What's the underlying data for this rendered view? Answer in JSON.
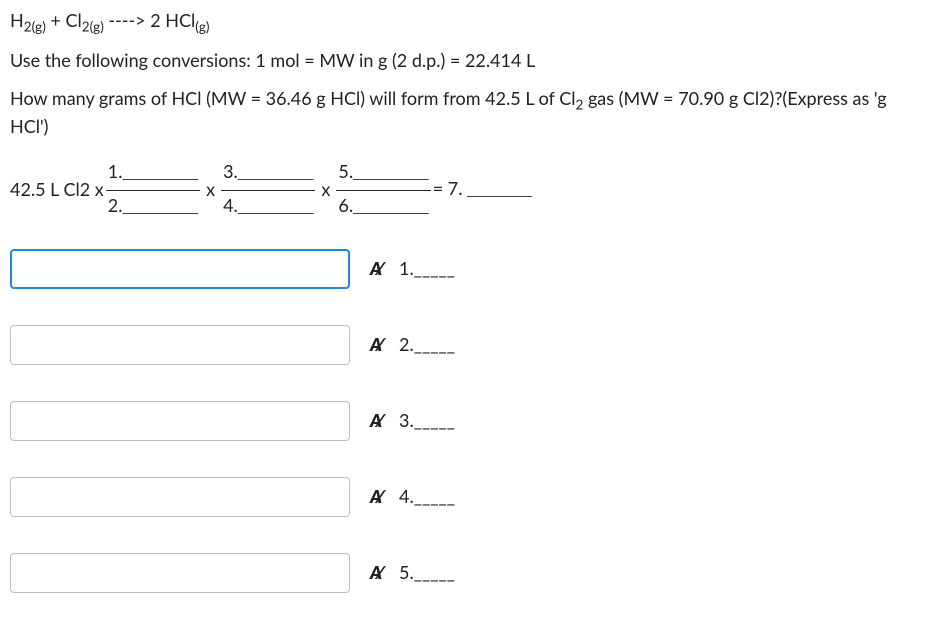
{
  "equation": {
    "lhs1_base": "H",
    "lhs1_sub": "2(g)",
    "plus": " + ",
    "lhs2_base": "Cl",
    "lhs2_sub": "2(g)",
    "arrow": " ----> ",
    "rhs_coef": "2 ",
    "rhs_base": "HCl",
    "rhs_sub": "(g)"
  },
  "conversion_line": "Use the following conversions: 1 mol = MW in g (2 d.p.) = 22.414 L",
  "question": {
    "part1": "How many grams of HCl (MW = 36.46 g HCl) will form from 42.5 L of Cl",
    "sub": "2",
    "part2": " gas (MW = 70.90 g Cl2)?(Express as 'g HCl')"
  },
  "setup": {
    "lead": "42.5 L Cl2 x",
    "num1": "1.",
    "blank1": "_______",
    "den2": "2.",
    "blank2": "_______",
    "x1": "x",
    "num3": "3.",
    "blank3": "_______",
    "den4": "4.",
    "blank4": "_______",
    "x2": "x",
    "num5": "5.",
    "blank5": "_______",
    "den6": "6.",
    "blank6": "_______",
    "eq": " = 7. ",
    "blank7": "______"
  },
  "answers": [
    {
      "label_num": "1.",
      "blank": "_____",
      "active": true
    },
    {
      "label_num": "2.",
      "blank": "_____",
      "active": false
    },
    {
      "label_num": "3.",
      "blank": "_____",
      "active": false
    },
    {
      "label_num": "4.",
      "blank": "_____",
      "active": false
    },
    {
      "label_num": "5.",
      "blank": "_____",
      "active": false
    }
  ],
  "colors": {
    "text": "#222222",
    "input_border": "#bdbdbd",
    "active_border": "#1e88e5",
    "background": "#ffffff"
  }
}
